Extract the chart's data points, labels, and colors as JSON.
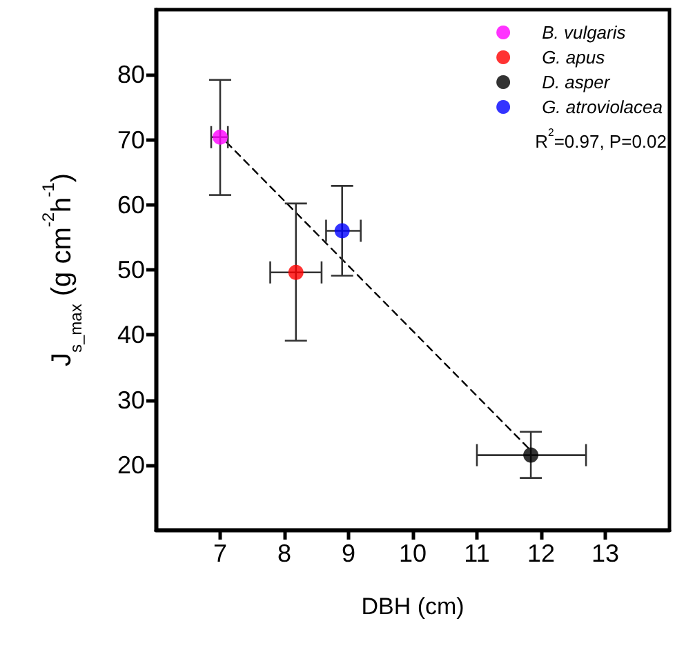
{
  "chart_data": {
    "type": "scatter",
    "xlabel": "DBH (cm)",
    "ylabel": "J$_{s_max}$ (g cm$^{-2}$h$^{-1}$)",
    "xlim": [
      6,
      14
    ],
    "xticks": [
      7,
      8,
      9,
      10,
      11,
      12,
      13
    ],
    "ylim": [
      10,
      90
    ],
    "yticks": [
      20,
      30,
      40,
      50,
      60,
      70,
      80
    ],
    "grid": false,
    "legend": "top right",
    "marker": "circle",
    "annotations": [
      "R$^{2}$=0.97, P=0.02"
    ],
    "series": [
      {
        "name": "B. vulgaris",
        "color": "#ff00ff",
        "x": [
          7.0
        ],
        "values": [
          70.4
        ],
        "errors": [
          [
            61.5,
            79.2
          ]
        ],
        "xerrors": [
          [
            6.86,
            7.12
          ]
        ]
      },
      {
        "name": "G. apus",
        "color": "#ff0000",
        "x": [
          8.18
        ],
        "values": [
          49.6
        ],
        "errors": [
          [
            39.1,
            60.2
          ]
        ],
        "xerrors": [
          [
            7.78,
            8.58
          ]
        ]
      },
      {
        "name": "D. asper",
        "color": "#000000",
        "x": [
          11.84
        ],
        "values": [
          21.5
        ],
        "errors": [
          [
            18.0,
            25.1
          ]
        ],
        "xerrors": [
          [
            11.0,
            12.7
          ]
        ]
      },
      {
        "name": "G. atroviolacea",
        "color": "#0000ff",
        "x": [
          8.9
        ],
        "values": [
          56.0
        ],
        "errors": [
          [
            49.1,
            62.9
          ]
        ],
        "xerrors": [
          [
            8.65,
            9.19
          ]
        ]
      },
      {
        "type": "line",
        "color": "#000000",
        "line_style": "dashed",
        "marker": "none",
        "x": [
          7.1,
          11.8
        ],
        "values": [
          69.6,
          22.6
        ]
      }
    ]
  }
}
